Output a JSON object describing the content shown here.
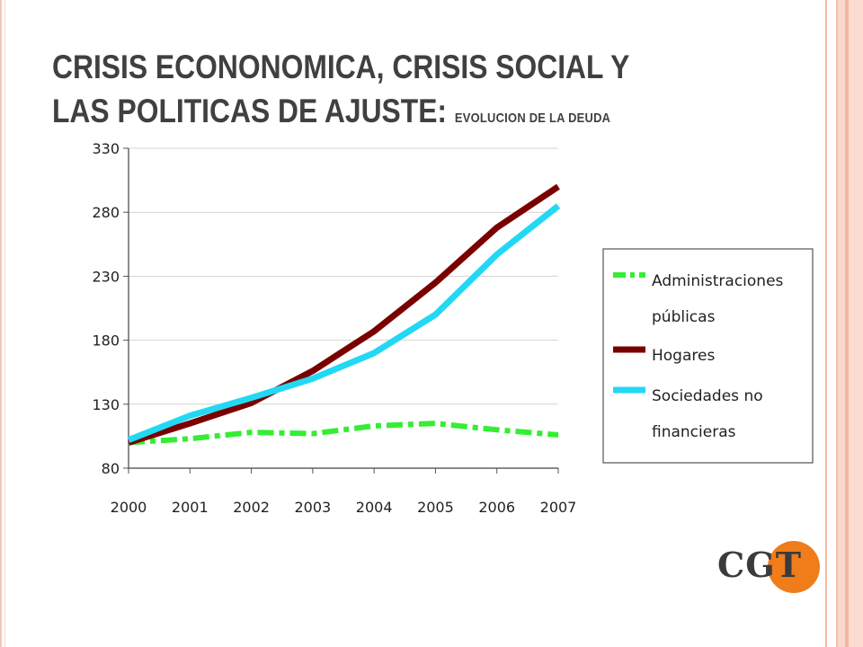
{
  "slide": {
    "title_line1": "CRISIS ECONONOMICA, CRISIS SOCIAL Y",
    "title_line2": "LAS POLITICAS DE AJUSTE:",
    "title_sub": "EVOLUCION DE LA DEUDA",
    "logo_text": "CGT",
    "logo_color": "#f07c1a"
  },
  "chart_data": {
    "type": "line",
    "x": [
      "2000",
      "2001",
      "2002",
      "2003",
      "2004",
      "2005",
      "2006",
      "2007"
    ],
    "ylim": [
      80,
      330
    ],
    "yticks": [
      "330",
      "280",
      "230",
      "180",
      "130",
      "80"
    ],
    "grid": true,
    "legend_position": "right",
    "series": [
      {
        "name_lines": [
          "Administraciones",
          "públicas"
        ],
        "color": "#33ee33",
        "style": "dash-dot",
        "values": [
          100,
          103,
          108,
          107,
          113,
          115,
          110,
          106
        ]
      },
      {
        "name_lines": [
          "Hogares"
        ],
        "color": "#7a0000",
        "style": "solid",
        "values": [
          100,
          115,
          131,
          156,
          187,
          225,
          268,
          300
        ]
      },
      {
        "name_lines": [
          "Sociedades no",
          "financieras"
        ],
        "color": "#22d8f4",
        "style": "solid",
        "values": [
          102,
          121,
          135,
          150,
          170,
          200,
          247,
          285
        ]
      }
    ]
  }
}
